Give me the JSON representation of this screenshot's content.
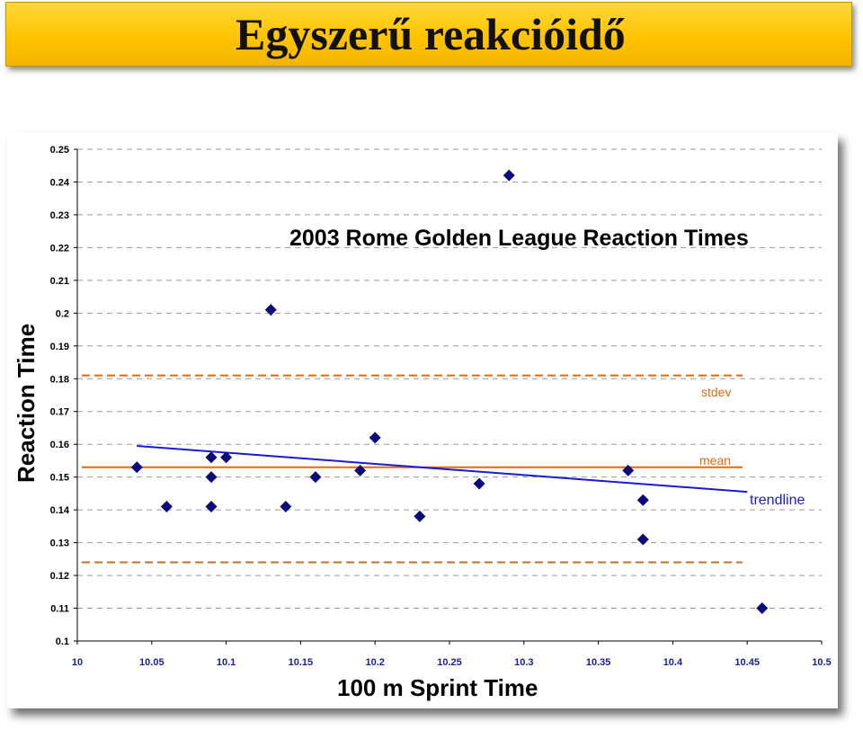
{
  "slide": {
    "title": "Egyszerű reakcióidő"
  },
  "chart_data": {
    "type": "scatter",
    "title": "2003 Rome Golden League Reaction Times",
    "xlabel": "100 m Sprint Time",
    "ylabel": "Reaction Time",
    "xlim": [
      10,
      10.5
    ],
    "ylim": [
      0.1,
      0.25
    ],
    "x_ticks": [
      "10",
      "10.05",
      "10.1",
      "10.15",
      "10.2",
      "10.25",
      "10.3",
      "10.35",
      "10.4",
      "10.45",
      "10.5"
    ],
    "y_ticks": [
      "0.1",
      "0.11",
      "0.12",
      "0.13",
      "0.14",
      "0.15",
      "0.16",
      "0.17",
      "0.18",
      "0.19",
      "0.2",
      "0.21",
      "0.22",
      "0.23",
      "0.24",
      "0.25"
    ],
    "grid": "horizontal dashed",
    "points": [
      {
        "x": 10.04,
        "y": 0.153
      },
      {
        "x": 10.06,
        "y": 0.141
      },
      {
        "x": 10.09,
        "y": 0.156
      },
      {
        "x": 10.09,
        "y": 0.15
      },
      {
        "x": 10.09,
        "y": 0.141
      },
      {
        "x": 10.1,
        "y": 0.156
      },
      {
        "x": 10.13,
        "y": 0.201
      },
      {
        "x": 10.14,
        "y": 0.141
      },
      {
        "x": 10.16,
        "y": 0.15
      },
      {
        "x": 10.19,
        "y": 0.152
      },
      {
        "x": 10.2,
        "y": 0.162
      },
      {
        "x": 10.23,
        "y": 0.138
      },
      {
        "x": 10.27,
        "y": 0.148
      },
      {
        "x": 10.29,
        "y": 0.242
      },
      {
        "x": 10.37,
        "y": 0.152
      },
      {
        "x": 10.38,
        "y": 0.143
      },
      {
        "x": 10.38,
        "y": 0.131
      },
      {
        "x": 10.46,
        "y": 0.11
      }
    ],
    "mean": 0.153,
    "stdev_upper": 0.181,
    "stdev_lower": 0.124,
    "trendline": {
      "x": [
        10.04,
        10.45
      ],
      "y": [
        0.1595,
        0.1455
      ]
    },
    "annotations": {
      "stdev": "stdev",
      "mean": "mean",
      "trendline": "trendline"
    },
    "colors": {
      "points": "#0a0a7a",
      "trendline": "#1a1ad0",
      "mean": "#e06a10",
      "stdev": "#e06a10",
      "grid": "#9a9a9a"
    }
  }
}
